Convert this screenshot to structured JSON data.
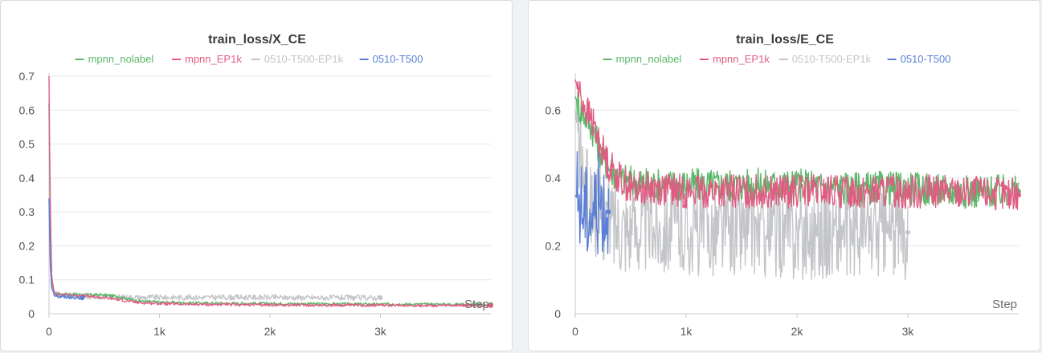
{
  "chart_data": [
    {
      "type": "line",
      "title": "train_loss/X_CE",
      "xlabel": "Step",
      "ylabel": "",
      "xlim": [
        0,
        4000
      ],
      "ylim": [
        0,
        0.7
      ],
      "x_ticks": [
        "0",
        "1k",
        "2k",
        "3k"
      ],
      "x_tick_values": [
        0,
        1000,
        2000,
        3000
      ],
      "y_ticks": [
        "0",
        "0.1",
        "0.2",
        "0.3",
        "0.4",
        "0.5",
        "0.6",
        "0.7"
      ],
      "y_tick_values": [
        0,
        0.1,
        0.2,
        0.3,
        0.4,
        0.5,
        0.6,
        0.7
      ],
      "grid": true,
      "legend_position": "top",
      "series": [
        {
          "name": "mpnn_nolabel",
          "color": "#5cb86a",
          "x": [
            0,
            10,
            25,
            50,
            100,
            200,
            300,
            400,
            500,
            600,
            700,
            800,
            1000,
            1200,
            1500,
            2000,
            2500,
            3000,
            3500,
            4000
          ],
          "y": [
            0.62,
            0.3,
            0.09,
            0.06,
            0.058,
            0.058,
            0.057,
            0.056,
            0.055,
            0.052,
            0.045,
            0.038,
            0.034,
            0.032,
            0.031,
            0.03,
            0.029,
            0.028,
            0.028,
            0.027
          ]
        },
        {
          "name": "mpnn_EP1k",
          "color": "#e05c82",
          "x": [
            0,
            10,
            25,
            50,
            100,
            200,
            300,
            400,
            500,
            600,
            700,
            800,
            1000,
            1200,
            1500,
            2000,
            2500,
            3000,
            3500,
            4000
          ],
          "y": [
            0.7,
            0.35,
            0.1,
            0.06,
            0.057,
            0.055,
            0.053,
            0.05,
            0.047,
            0.043,
            0.038,
            0.033,
            0.03,
            0.028,
            0.027,
            0.026,
            0.025,
            0.025,
            0.024,
            0.024
          ]
        },
        {
          "name": "0510-T500-EP1k",
          "color": "#c3c5c8",
          "x": [
            0,
            10,
            25,
            50,
            100,
            200,
            300,
            500,
            800,
            1000,
            1500,
            2000,
            2500,
            3000
          ],
          "y": [
            0.62,
            0.3,
            0.1,
            0.06,
            0.055,
            0.052,
            0.05,
            0.05,
            0.048,
            0.048,
            0.048,
            0.048,
            0.047,
            0.047
          ]
        },
        {
          "name": "0510-T500",
          "color": "#5b7fd6",
          "x": [
            0,
            10,
            25,
            50,
            100,
            150,
            200,
            250,
            300
          ],
          "y": [
            0.34,
            0.15,
            0.07,
            0.052,
            0.05,
            0.05,
            0.048,
            0.047,
            0.047
          ]
        }
      ]
    },
    {
      "type": "line",
      "title": "train_loss/E_CE",
      "xlabel": "Step",
      "ylabel": "",
      "xlim": [
        0,
        4000
      ],
      "ylim": [
        0,
        0.7
      ],
      "x_ticks": [
        "0",
        "1k",
        "2k",
        "3k"
      ],
      "x_tick_values": [
        0,
        1000,
        2000,
        3000
      ],
      "y_ticks": [
        "0",
        "0.2",
        "0.4",
        "0.6"
      ],
      "y_tick_values": [
        0,
        0.2,
        0.4,
        0.6
      ],
      "grid": true,
      "legend_position": "top",
      "series": [
        {
          "name": "mpnn_nolabel",
          "color": "#5cb86a",
          "x": [
            0,
            50,
            100,
            150,
            200,
            250,
            300,
            400,
            500,
            750,
            1000,
            1500,
            2000,
            2500,
            3000,
            3500,
            4000
          ],
          "y": [
            0.64,
            0.6,
            0.58,
            0.55,
            0.5,
            0.46,
            0.43,
            0.4,
            0.39,
            0.38,
            0.38,
            0.38,
            0.38,
            0.37,
            0.37,
            0.36,
            0.36
          ]
        },
        {
          "name": "mpnn_EP1k",
          "color": "#e05c82",
          "x": [
            0,
            50,
            100,
            150,
            200,
            250,
            300,
            400,
            500,
            750,
            1000,
            1500,
            2000,
            2500,
            3000,
            3500,
            4000
          ],
          "y": [
            0.69,
            0.64,
            0.6,
            0.57,
            0.52,
            0.48,
            0.44,
            0.4,
            0.37,
            0.37,
            0.36,
            0.36,
            0.36,
            0.36,
            0.36,
            0.36,
            0.35
          ]
        },
        {
          "name": "0510-T500-EP1k",
          "color": "#c3c5c8",
          "x": [
            0,
            50,
            100,
            150,
            200,
            300,
            500,
            800,
            1000,
            1500,
            2000,
            2500,
            3000
          ],
          "y": [
            0.6,
            0.45,
            0.35,
            0.32,
            0.3,
            0.28,
            0.26,
            0.26,
            0.25,
            0.25,
            0.24,
            0.24,
            0.24
          ]
        },
        {
          "name": "0510-T500",
          "color": "#5b7fd6",
          "x": [
            0,
            50,
            100,
            150,
            200,
            250,
            300
          ],
          "y": [
            0.35,
            0.32,
            0.3,
            0.3,
            0.32,
            0.33,
            0.3
          ]
        }
      ]
    }
  ]
}
